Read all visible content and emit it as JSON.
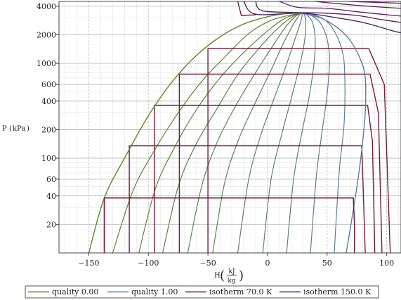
{
  "chart_data": {
    "type": "line",
    "xlabel": "H",
    "xlabel_unit_num": "kJ",
    "xlabel_unit_den": "kg",
    "ylabel": "P",
    "ylabel_unit": "kPa",
    "x_range": [
      -175,
      112
    ],
    "y_range": [
      10,
      4500
    ],
    "y_scale": "log",
    "grid": true,
    "legend_position": "bottom",
    "x_ticks": [
      {
        "value": -150,
        "label": "−150"
      },
      {
        "value": -100,
        "label": "−100"
      },
      {
        "value": -50,
        "label": "−50"
      },
      {
        "value": 0,
        "label": "0"
      },
      {
        "value": 50,
        "label": "50"
      },
      {
        "value": 100,
        "label": "100"
      }
    ],
    "y_ticks": [
      {
        "value": 20,
        "label": "20"
      },
      {
        "value": 40,
        "label": "40"
      },
      {
        "value": 60,
        "label": "60"
      },
      {
        "value": 100,
        "label": "100"
      },
      {
        "value": 200,
        "label": "200"
      },
      {
        "value": 400,
        "label": "400"
      },
      {
        "value": 600,
        "label": "600"
      },
      {
        "value": 1000,
        "label": "1000"
      },
      {
        "value": 2000,
        "label": "2000"
      },
      {
        "value": 4000,
        "label": "4000"
      }
    ],
    "critical_point": {
      "h": 28,
      "p": 3390
    },
    "series": [
      {
        "name": "quality 0.00",
        "color": "#5b8a1e",
        "points": [
          [
            -150,
            10
          ],
          [
            -137,
            38
          ],
          [
            -120,
            100
          ],
          [
            -100,
            280
          ],
          [
            -80,
            640
          ],
          [
            -60,
            1200
          ],
          [
            -40,
            1900
          ],
          [
            -20,
            2600
          ],
          [
            0,
            3100
          ],
          [
            15,
            3330
          ],
          [
            28,
            3390
          ]
        ]
      },
      {
        "name": "quality 1.00",
        "color": "#5a7fa2",
        "points": [
          [
            28,
            3390
          ],
          [
            45,
            3000
          ],
          [
            60,
            2300
          ],
          [
            70,
            1700
          ],
          [
            78,
            1100
          ],
          [
            82,
            700
          ],
          [
            82,
            300
          ],
          [
            79,
            120
          ],
          [
            75,
            50
          ],
          [
            70,
            20
          ],
          [
            66,
            10
          ]
        ]
      },
      {
        "name": "isotherm 70.0 K",
        "color": "#7a1838",
        "points": [
          [
            -137,
            10
          ],
          [
            -137,
            38
          ],
          [
            72,
            38
          ],
          [
            73,
            20
          ],
          [
            73,
            10
          ]
        ]
      },
      {
        "name": "isotherm 150.0 K",
        "color": "#3d2f6b",
        "points": [
          [
            -20,
            4500
          ],
          [
            -10,
            3300
          ],
          [
            28,
            3390
          ],
          [
            60,
            3000
          ],
          [
            80,
            2700
          ],
          [
            95,
            2400
          ],
          [
            105,
            2200
          ],
          [
            112,
            2100
          ]
        ]
      }
    ],
    "quality_lines": [
      [
        [
          -130,
          10
        ],
        [
          -113,
          45
        ],
        [
          -95,
          120
        ],
        [
          -75,
          300
        ],
        [
          -55,
          650
        ],
        [
          -35,
          1200
        ],
        [
          -15,
          2100
        ],
        [
          5,
          2900
        ],
        [
          28,
          3390
        ]
      ],
      [
        [
          -108,
          10
        ],
        [
          -94,
          48
        ],
        [
          -78,
          130
        ],
        [
          -60,
          320
        ],
        [
          -40,
          700
        ],
        [
          -20,
          1300
        ],
        [
          0,
          2200
        ],
        [
          15,
          3000
        ],
        [
          28,
          3390
        ]
      ],
      [
        [
          -88,
          10
        ],
        [
          -75,
          50
        ],
        [
          -60,
          140
        ],
        [
          -42,
          340
        ],
        [
          -25,
          760
        ],
        [
          -8,
          1400
        ],
        [
          8,
          2300
        ],
        [
          20,
          3050
        ],
        [
          28,
          3390
        ]
      ],
      [
        [
          -67,
          10
        ],
        [
          -55,
          52
        ],
        [
          -42,
          150
        ],
        [
          -26,
          370
        ],
        [
          -10,
          800
        ],
        [
          4,
          1500
        ],
        [
          15,
          2400
        ],
        [
          23,
          3100
        ],
        [
          28,
          3390
        ]
      ],
      [
        [
          -46,
          10
        ],
        [
          -36,
          55
        ],
        [
          -24,
          160
        ],
        [
          -10,
          390
        ],
        [
          3,
          850
        ],
        [
          13,
          1600
        ],
        [
          21,
          2500
        ],
        [
          26,
          3150
        ],
        [
          28,
          3390
        ]
      ],
      [
        [
          -25,
          10
        ],
        [
          -16,
          58
        ],
        [
          -6,
          170
        ],
        [
          5,
          410
        ],
        [
          15,
          900
        ],
        [
          22,
          1650
        ],
        [
          27,
          2550
        ],
        [
          29,
          3200
        ],
        [
          28,
          3390
        ]
      ],
      [
        [
          -4,
          10
        ],
        [
          3,
          60
        ],
        [
          12,
          180
        ],
        [
          20,
          430
        ],
        [
          27,
          950
        ],
        [
          31,
          1700
        ],
        [
          32,
          2600
        ],
        [
          31,
          3250
        ],
        [
          28,
          3390
        ]
      ],
      [
        [
          16,
          10
        ],
        [
          22,
          62
        ],
        [
          29,
          190
        ],
        [
          35,
          450
        ],
        [
          39,
          1000
        ],
        [
          40,
          1750
        ],
        [
          38,
          2650
        ],
        [
          33,
          3250
        ],
        [
          28,
          3390
        ]
      ],
      [
        [
          36,
          10
        ],
        [
          41,
          65
        ],
        [
          46,
          200
        ],
        [
          50,
          470
        ],
        [
          52,
          1050
        ],
        [
          50,
          1800
        ],
        [
          44,
          2700
        ],
        [
          35,
          3280
        ],
        [
          28,
          3390
        ]
      ],
      [
        [
          56,
          10
        ],
        [
          60,
          68
        ],
        [
          64,
          210
        ],
        [
          65,
          490
        ],
        [
          64,
          1100
        ],
        [
          59,
          1850
        ],
        [
          50,
          2750
        ],
        [
          37,
          3300
        ],
        [
          28,
          3390
        ]
      ]
    ],
    "isotherms": [
      [
        [
          -137,
          10
        ],
        [
          -137,
          38
        ],
        [
          72,
          38
        ],
        [
          73,
          20
        ],
        [
          73,
          10
        ]
      ],
      [
        [
          -116,
          10
        ],
        [
          -116,
          135
        ],
        [
          79,
          135
        ],
        [
          80,
          60
        ],
        [
          82,
          10
        ]
      ],
      [
        [
          -95,
          10
        ],
        [
          -95,
          360
        ],
        [
          84,
          360
        ],
        [
          88,
          150
        ],
        [
          90,
          10
        ]
      ],
      [
        [
          -74,
          10
        ],
        [
          -74,
          770
        ],
        [
          86,
          770
        ],
        [
          93,
          300
        ],
        [
          96,
          10
        ]
      ],
      [
        [
          -50,
          10
        ],
        [
          -50,
          1430
        ],
        [
          85,
          1430
        ],
        [
          98,
          600
        ],
        [
          103,
          10
        ]
      ],
      [
        [
          -25,
          4500
        ],
        [
          -22,
          3200
        ],
        [
          -10,
          3250
        ]
      ]
    ],
    "supercritical": [
      [
        [
          -10,
          4500
        ],
        [
          -5,
          3600
        ],
        [
          20,
          3450
        ],
        [
          50,
          3380
        ],
        [
          75,
          3200
        ],
        [
          95,
          2900
        ],
        [
          112,
          2700
        ]
      ],
      [
        [
          10,
          4500
        ],
        [
          25,
          3900
        ],
        [
          50,
          3800
        ],
        [
          75,
          3500
        ],
        [
          95,
          3300
        ],
        [
          112,
          3150
        ]
      ],
      [
        [
          40,
          4500
        ],
        [
          60,
          4250
        ],
        [
          85,
          4000
        ],
        [
          112,
          3800
        ]
      ],
      [
        [
          68,
          4500
        ],
        [
          90,
          4400
        ],
        [
          112,
          4300
        ]
      ]
    ],
    "legend": [
      {
        "label": "quality 0.00",
        "color": "#5b8a1e"
      },
      {
        "label": "quality 1.00",
        "color": "#5a7fa2"
      },
      {
        "label": "isotherm 70.0 K",
        "color": "#7a1838"
      },
      {
        "label": "isotherm 150.0 K",
        "color": "#3d2f6b"
      }
    ]
  }
}
